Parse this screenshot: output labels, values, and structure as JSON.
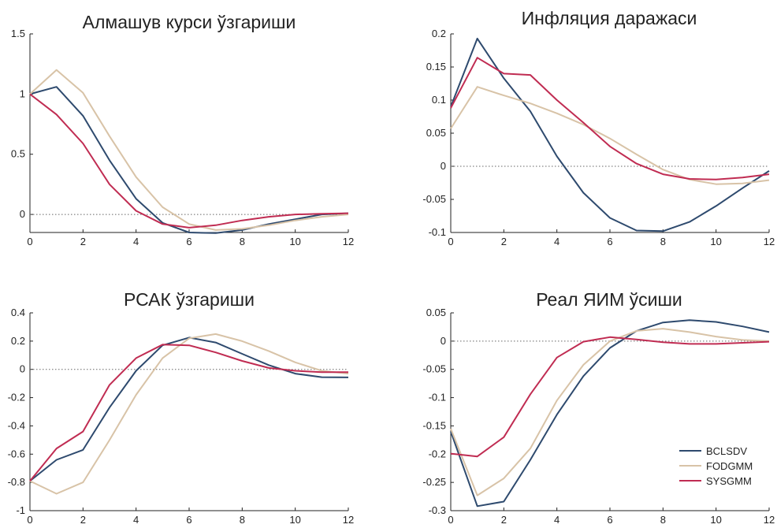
{
  "chart_data": [
    {
      "type": "line",
      "title": "Алмашув курси ўзгариши",
      "x": [
        0,
        1,
        2,
        3,
        4,
        5,
        6,
        7,
        8,
        9,
        10,
        11,
        12
      ],
      "xlim": [
        0,
        12
      ],
      "xticks": [
        0,
        2,
        4,
        6,
        8,
        10,
        12
      ],
      "ylim": [
        -0.15,
        1.5
      ],
      "yticks": [
        "0",
        "0.5",
        "1",
        "1.5"
      ],
      "ytick_values": [
        0,
        0.5,
        1,
        1.5
      ],
      "zero_line": true,
      "series": [
        {
          "name": "BCLSDV",
          "values": [
            1.0,
            1.06,
            0.82,
            0.45,
            0.13,
            -0.07,
            -0.15,
            -0.155,
            -0.13,
            -0.08,
            -0.04,
            0.0,
            0.01
          ]
        },
        {
          "name": "FODGMM",
          "values": [
            1.0,
            1.2,
            1.01,
            0.65,
            0.31,
            0.06,
            -0.08,
            -0.13,
            -0.12,
            -0.09,
            -0.05,
            -0.02,
            0.0
          ]
        },
        {
          "name": "SYSGMM",
          "values": [
            1.0,
            0.83,
            0.59,
            0.25,
            0.03,
            -0.08,
            -0.11,
            -0.09,
            -0.05,
            -0.02,
            0.0,
            0.005,
            0.01
          ]
        }
      ]
    },
    {
      "type": "line",
      "title": "Инфляция даражаси",
      "x": [
        0,
        1,
        2,
        3,
        4,
        5,
        6,
        7,
        8,
        9,
        10,
        11,
        12
      ],
      "xlim": [
        0,
        12
      ],
      "xticks": [
        0,
        2,
        4,
        6,
        8,
        10,
        12
      ],
      "ylim": [
        -0.1,
        0.2
      ],
      "yticks": [
        "-0.1",
        "-0.05",
        "0",
        "0.05",
        "0.1",
        "0.15",
        "0.2"
      ],
      "ytick_values": [
        -0.1,
        -0.05,
        0,
        0.05,
        0.1,
        0.15,
        0.2
      ],
      "zero_line": true,
      "series": [
        {
          "name": "BCLSDV",
          "values": [
            0.09,
            0.193,
            0.133,
            0.083,
            0.015,
            -0.04,
            -0.078,
            -0.097,
            -0.098,
            -0.084,
            -0.06,
            -0.033,
            -0.007
          ]
        },
        {
          "name": "FODGMM",
          "values": [
            0.057,
            0.12,
            0.107,
            0.095,
            0.08,
            0.063,
            0.042,
            0.018,
            -0.005,
            -0.02,
            -0.027,
            -0.026,
            -0.021
          ]
        },
        {
          "name": "SYSGMM",
          "values": [
            0.088,
            0.164,
            0.14,
            0.138,
            0.1,
            0.066,
            0.03,
            0.004,
            -0.012,
            -0.019,
            -0.02,
            -0.017,
            -0.012
          ]
        }
      ]
    },
    {
      "type": "line",
      "title": "РСАК ўзгариши",
      "x": [
        0,
        1,
        2,
        3,
        4,
        5,
        6,
        7,
        8,
        9,
        10,
        11,
        12
      ],
      "xlim": [
        0,
        12
      ],
      "xticks": [
        0,
        2,
        4,
        6,
        8,
        10,
        12
      ],
      "ylim": [
        -1.0,
        0.4
      ],
      "yticks": [
        "-1",
        "-0.8",
        "-0.6",
        "-0.4",
        "-0.2",
        "0",
        "0.2",
        "0.4"
      ],
      "ytick_values": [
        -1.0,
        -0.8,
        -0.6,
        -0.4,
        -0.2,
        0,
        0.2,
        0.4
      ],
      "zero_line": true,
      "series": [
        {
          "name": "BCLSDV",
          "values": [
            -0.79,
            -0.64,
            -0.57,
            -0.27,
            -0.01,
            0.17,
            0.225,
            0.19,
            0.11,
            0.03,
            -0.03,
            -0.055,
            -0.057
          ]
        },
        {
          "name": "FODGMM",
          "values": [
            -0.79,
            -0.88,
            -0.8,
            -0.5,
            -0.18,
            0.08,
            0.22,
            0.25,
            0.2,
            0.13,
            0.05,
            -0.01,
            -0.03
          ]
        },
        {
          "name": "SYSGMM",
          "values": [
            -0.79,
            -0.56,
            -0.44,
            -0.11,
            0.08,
            0.175,
            0.17,
            0.12,
            0.06,
            0.01,
            -0.01,
            -0.02,
            -0.02
          ]
        }
      ]
    },
    {
      "type": "line",
      "title": "Реал ЯИМ ўсиши",
      "x": [
        0,
        1,
        2,
        3,
        4,
        5,
        6,
        7,
        8,
        9,
        10,
        11,
        12
      ],
      "xlim": [
        0,
        12
      ],
      "xticks": [
        0,
        2,
        4,
        6,
        8,
        10,
        12
      ],
      "ylim": [
        -0.3,
        0.05
      ],
      "yticks": [
        "-0.3",
        "-0.25",
        "-0.2",
        "-0.15",
        "-0.1",
        "-0.05",
        "0",
        "0.05"
      ],
      "ytick_values": [
        -0.3,
        -0.25,
        -0.2,
        -0.15,
        -0.1,
        -0.05,
        0,
        0.05
      ],
      "zero_line": true,
      "legend": {
        "placement": "lower-right",
        "entries": [
          "BCLSDV",
          "FODGMM",
          "SYSGMM"
        ]
      },
      "series": [
        {
          "name": "BCLSDV",
          "values": [
            -0.16,
            -0.292,
            -0.284,
            -0.21,
            -0.13,
            -0.062,
            -0.012,
            0.018,
            0.033,
            0.037,
            0.034,
            0.026,
            0.016
          ]
        },
        {
          "name": "FODGMM",
          "values": [
            -0.155,
            -0.273,
            -0.243,
            -0.19,
            -0.105,
            -0.042,
            0.0,
            0.018,
            0.022,
            0.016,
            0.008,
            0.002,
            0.0
          ]
        },
        {
          "name": "SYSGMM",
          "values": [
            -0.199,
            -0.204,
            -0.17,
            -0.094,
            -0.029,
            -0.001,
            0.007,
            0.003,
            -0.002,
            -0.005,
            -0.005,
            -0.003,
            -0.001
          ]
        }
      ]
    }
  ],
  "colors": {
    "BCLSDV": "#2e4a6e",
    "FODGMM": "#d8c3a7",
    "SYSGMM": "#c02c52",
    "zero_line": "#666666",
    "axis": "#222222"
  }
}
